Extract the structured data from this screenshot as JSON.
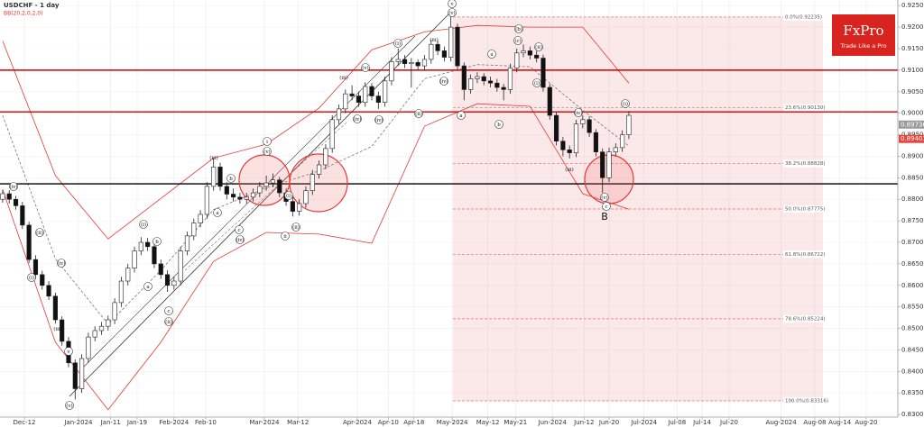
{
  "chart_data": {
    "type": "candlestick",
    "title": "USDCHF - 1 day",
    "indicator_label": "BB(20,2,0,2,0)",
    "logo": {
      "name": "FxPro",
      "tagline": "Trade Like a Pro"
    },
    "ylim": [
      0.8294,
      0.9263
    ],
    "xlim": [
      -0.4,
      135.8
    ],
    "yticks": [
      {
        "value": 0.83,
        "label": "0.83000"
      },
      {
        "value": 0.835,
        "label": "0.83500"
      },
      {
        "value": 0.84,
        "label": "0.84000"
      },
      {
        "value": 0.845,
        "label": "0.84500"
      },
      {
        "value": 0.85,
        "label": "0.85000"
      },
      {
        "value": 0.855,
        "label": "0.85500"
      },
      {
        "value": 0.86,
        "label": "0.86000"
      },
      {
        "value": 0.865,
        "label": "0.86500"
      },
      {
        "value": 0.87,
        "label": "0.87000"
      },
      {
        "value": 0.875,
        "label": "0.87500"
      },
      {
        "value": 0.88,
        "label": "0.88000"
      },
      {
        "value": 0.885,
        "label": "0.88500"
      },
      {
        "value": 0.89,
        "label": "0.89000"
      },
      {
        "value": 0.895,
        "label": "0.89500"
      },
      {
        "value": 0.9,
        "label": "0.90000"
      },
      {
        "value": 0.905,
        "label": "0.90500"
      },
      {
        "value": 0.91,
        "label": "0.91000"
      },
      {
        "value": 0.915,
        "label": "0.91500"
      },
      {
        "value": 0.92,
        "label": "0.92000"
      },
      {
        "value": 0.925,
        "label": "0.92500"
      }
    ],
    "xticks": [
      {
        "value": 3.3,
        "label": "Dec-12"
      },
      {
        "value": 11.5,
        "label": "Jan-2024"
      },
      {
        "value": 16.4,
        "label": "Jan-11"
      },
      {
        "value": 20.4,
        "label": "Jan-19"
      },
      {
        "value": 26.0,
        "label": "Feb-2024"
      },
      {
        "value": 30.8,
        "label": "Feb-10"
      },
      {
        "value": 39.7,
        "label": "Mar-2024"
      },
      {
        "value": 44.8,
        "label": "Mar-12"
      },
      {
        "value": 53.8,
        "label": "Apr-2024"
      },
      {
        "value": 58.5,
        "label": "Apr-10"
      },
      {
        "value": 62.4,
        "label": "Apr-18"
      },
      {
        "value": 68.2,
        "label": "May-2024"
      },
      {
        "value": 73.6,
        "label": "May-12"
      },
      {
        "value": 77.8,
        "label": "May-21"
      },
      {
        "value": 83.4,
        "label": "Jun-2024"
      },
      {
        "value": 88.2,
        "label": "Jun-12"
      },
      {
        "value": 92.0,
        "label": "Jun-20"
      },
      {
        "value": 97.3,
        "label": "Jul-2024"
      },
      {
        "value": 102.3,
        "label": "Jul-08"
      },
      {
        "value": 106.1,
        "label": "Jul-14"
      },
      {
        "value": 110.2,
        "label": "Jul-20"
      },
      {
        "value": 118.1,
        "label": "Aug-2024"
      },
      {
        "value": 123.2,
        "label": "Aug-08"
      },
      {
        "value": 127.0,
        "label": "Aug-14"
      },
      {
        "value": 131.0,
        "label": "Aug-20"
      }
    ],
    "grid": true,
    "up_color": "#ffffff",
    "down_color": "#111111",
    "candles": [
      [
        0.88,
        0.8822,
        0.8792,
        0.8813
      ],
      [
        0.8813,
        0.8821,
        0.879,
        0.88
      ],
      [
        0.88,
        0.8808,
        0.8776,
        0.8785
      ],
      [
        0.8785,
        0.8794,
        0.8731,
        0.874
      ],
      [
        0.874,
        0.8748,
        0.8652,
        0.866
      ],
      [
        0.866,
        0.867,
        0.8615,
        0.8625
      ],
      [
        0.8625,
        0.8634,
        0.859,
        0.86
      ],
      [
        0.86,
        0.861,
        0.8566,
        0.8575
      ],
      [
        0.8575,
        0.8583,
        0.8511,
        0.852
      ],
      [
        0.852,
        0.8528,
        0.846,
        0.847
      ],
      [
        0.847,
        0.848,
        0.841,
        0.842
      ],
      [
        0.842,
        0.8428,
        0.8335,
        0.836
      ],
      [
        0.836,
        0.844,
        0.835,
        0.843
      ],
      [
        0.843,
        0.849,
        0.842,
        0.848
      ],
      [
        0.848,
        0.8505,
        0.847,
        0.8495
      ],
      [
        0.8495,
        0.8515,
        0.8485,
        0.8505
      ],
      [
        0.8505,
        0.853,
        0.8495,
        0.852
      ],
      [
        0.852,
        0.857,
        0.851,
        0.856
      ],
      [
        0.856,
        0.862,
        0.855,
        0.861
      ],
      [
        0.861,
        0.865,
        0.86,
        0.864
      ],
      [
        0.864,
        0.869,
        0.863,
        0.868
      ],
      [
        0.868,
        0.8712,
        0.867,
        0.87
      ],
      [
        0.87,
        0.871,
        0.868,
        0.869
      ],
      [
        0.869,
        0.8698,
        0.864,
        0.865
      ],
      [
        0.865,
        0.866,
        0.8615,
        0.8625
      ],
      [
        0.8625,
        0.8635,
        0.8585,
        0.86
      ],
      [
        0.86,
        0.862,
        0.859,
        0.861
      ],
      [
        0.861,
        0.869,
        0.86,
        0.868
      ],
      [
        0.868,
        0.8725,
        0.867,
        0.8715
      ],
      [
        0.8715,
        0.8755,
        0.8705,
        0.8745
      ],
      [
        0.8745,
        0.8775,
        0.8735,
        0.8765
      ],
      [
        0.8765,
        0.884,
        0.8755,
        0.883
      ],
      [
        0.883,
        0.8895,
        0.882,
        0.8875
      ],
      [
        0.8875,
        0.8885,
        0.882,
        0.883
      ],
      [
        0.883,
        0.884,
        0.88,
        0.8812
      ],
      [
        0.8812,
        0.8825,
        0.8795,
        0.8805
      ],
      [
        0.8805,
        0.8815,
        0.879,
        0.88
      ],
      [
        0.88,
        0.8815,
        0.879,
        0.8805
      ],
      [
        0.8805,
        0.8825,
        0.8795,
        0.8815
      ],
      [
        0.8815,
        0.884,
        0.8805,
        0.883
      ],
      [
        0.883,
        0.8855,
        0.882,
        0.8838
      ],
      [
        0.8838,
        0.886,
        0.8828,
        0.8845
      ],
      [
        0.8845,
        0.8852,
        0.8805,
        0.8815
      ],
      [
        0.8815,
        0.8825,
        0.8785,
        0.8795
      ],
      [
        0.8795,
        0.8805,
        0.876,
        0.8772
      ],
      [
        0.8772,
        0.88,
        0.8762,
        0.879
      ],
      [
        0.879,
        0.883,
        0.878,
        0.882
      ],
      [
        0.882,
        0.8868,
        0.881,
        0.8858
      ],
      [
        0.8858,
        0.889,
        0.8848,
        0.888
      ],
      [
        0.888,
        0.8928,
        0.887,
        0.8918
      ],
      [
        0.8918,
        0.8995,
        0.8908,
        0.8985
      ],
      [
        0.8985,
        0.902,
        0.8975,
        0.901
      ],
      [
        0.901,
        0.9055,
        0.9,
        0.9045
      ],
      [
        0.9045,
        0.9065,
        0.903,
        0.904
      ],
      [
        0.904,
        0.905,
        0.9015,
        0.9025
      ],
      [
        0.9025,
        0.9072,
        0.9015,
        0.9062
      ],
      [
        0.9062,
        0.907,
        0.903,
        0.904
      ],
      [
        0.904,
        0.905,
        0.901,
        0.9025
      ],
      [
        0.9025,
        0.9085,
        0.9015,
        0.9075
      ],
      [
        0.9075,
        0.913,
        0.9065,
        0.912
      ],
      [
        0.912,
        0.915,
        0.911,
        0.9125
      ],
      [
        0.9125,
        0.9135,
        0.9105,
        0.9115
      ],
      [
        0.9115,
        0.9128,
        0.906,
        0.9118
      ],
      [
        0.9118,
        0.9125,
        0.91,
        0.911
      ],
      [
        0.911,
        0.9135,
        0.91,
        0.9125
      ],
      [
        0.9125,
        0.917,
        0.9115,
        0.916
      ],
      [
        0.916,
        0.9168,
        0.9135,
        0.9145
      ],
      [
        0.9145,
        0.9155,
        0.912,
        0.913
      ],
      [
        0.913,
        0.9225,
        0.912,
        0.92
      ],
      [
        0.92,
        0.9208,
        0.91,
        0.911
      ],
      [
        0.911,
        0.9118,
        0.903,
        0.9055
      ],
      [
        0.9055,
        0.909,
        0.9045,
        0.908
      ],
      [
        0.908,
        0.9095,
        0.907,
        0.9085
      ],
      [
        0.9085,
        0.9093,
        0.9065,
        0.9075
      ],
      [
        0.9075,
        0.9085,
        0.906,
        0.907
      ],
      [
        0.907,
        0.908,
        0.905,
        0.906
      ],
      [
        0.906,
        0.9068,
        0.903,
        0.9055
      ],
      [
        0.9055,
        0.9115,
        0.9045,
        0.9105
      ],
      [
        0.9105,
        0.915,
        0.9095,
        0.914
      ],
      [
        0.914,
        0.916,
        0.913,
        0.9145
      ],
      [
        0.9145,
        0.9155,
        0.9125,
        0.9135
      ],
      [
        0.9135,
        0.9145,
        0.9118,
        0.9128
      ],
      [
        0.9128,
        0.9136,
        0.905,
        0.906
      ],
      [
        0.906,
        0.9068,
        0.8985,
        0.8995
      ],
      [
        0.8995,
        0.9003,
        0.8925,
        0.8935
      ],
      [
        0.8935,
        0.8945,
        0.89,
        0.8915
      ],
      [
        0.8915,
        0.8925,
        0.8895,
        0.8908
      ],
      [
        0.8908,
        0.8985,
        0.8898,
        0.8975
      ],
      [
        0.8975,
        0.8995,
        0.8965,
        0.8985
      ],
      [
        0.8985,
        0.8993,
        0.8945,
        0.8955
      ],
      [
        0.8955,
        0.8963,
        0.89,
        0.891
      ],
      [
        0.891,
        0.8918,
        0.8815,
        0.885
      ],
      [
        0.885,
        0.892,
        0.884,
        0.891
      ],
      [
        0.891,
        0.893,
        0.89,
        0.892
      ],
      [
        0.892,
        0.896,
        0.891,
        0.895
      ],
      [
        0.895,
        0.9005,
        0.894,
        0.8995
      ]
    ],
    "bands": {
      "color": "#e53935",
      "middle_color": "#777777",
      "x": [
        0,
        8,
        16,
        24,
        32,
        40,
        48,
        56,
        64,
        72,
        80,
        88,
        95
      ],
      "upper": [
        0.9168,
        0.8855,
        0.8708,
        0.8802,
        0.8896,
        0.8928,
        0.9012,
        0.9147,
        0.9189,
        0.9204,
        0.92,
        0.92,
        0.907
      ],
      "middle": [
        0.8995,
        0.8662,
        0.851,
        0.8635,
        0.8776,
        0.8826,
        0.8866,
        0.8923,
        0.908,
        0.9113,
        0.9108,
        0.9007,
        0.8924
      ],
      "lower": [
        0.8823,
        0.8468,
        0.8311,
        0.8468,
        0.8656,
        0.8723,
        0.8719,
        0.8698,
        0.897,
        0.9022,
        0.9016,
        0.8813,
        0.8777
      ]
    },
    "levels": [
      {
        "value": 0.91,
        "color": "#d00000"
      },
      {
        "value": 0.9003,
        "color": "#d00000"
      },
      {
        "value": 0.8836,
        "color": "#000000"
      }
    ],
    "price_markers": [
      {
        "value": 0.89736,
        "color": "#9a9a9a"
      },
      {
        "value": 0.89403,
        "color": "#e8443a"
      }
    ],
    "fibonacci": {
      "color": "#e07070",
      "fill": "rgba(235,150,150,0.22)",
      "levels": [
        {
          "value": 0.92235,
          "label": "0.0%(0.92235)"
        },
        {
          "value": 0.9013,
          "label": "23.6%(0.90130)"
        },
        {
          "value": 0.88828,
          "label": "38.2%(0.88828)"
        },
        {
          "value": 0.87775,
          "label": "50.0%(0.87775)"
        },
        {
          "value": 0.86722,
          "label": "61.8%(0.86722)"
        },
        {
          "value": 0.85224,
          "label": "78.6%(0.85224)"
        },
        {
          "value": 0.83316,
          "label": "100.0%(0.83316)"
        }
      ]
    },
    "annotations": [
      "(iv)",
      "(ii)",
      "(i)",
      "(iii)",
      "(iv)",
      "v",
      "(v)",
      "(i)",
      "(iii)",
      "(ii)",
      "b",
      "a",
      "c",
      "b",
      "a",
      "c",
      "(iv)",
      "(v)",
      "i",
      "(i)",
      "(ii)",
      "ii",
      "(iii)",
      "(iv)",
      "(v)",
      "(iv)",
      "(iii)",
      "(ii)",
      "(iv)",
      "(i)",
      "(v)",
      "v",
      "a",
      "a",
      "b",
      "(b)",
      "(c)",
      "(ii)",
      "(i)",
      "(iv)",
      "(iii)",
      "(i)",
      "(v)",
      "c",
      "B"
    ]
  }
}
